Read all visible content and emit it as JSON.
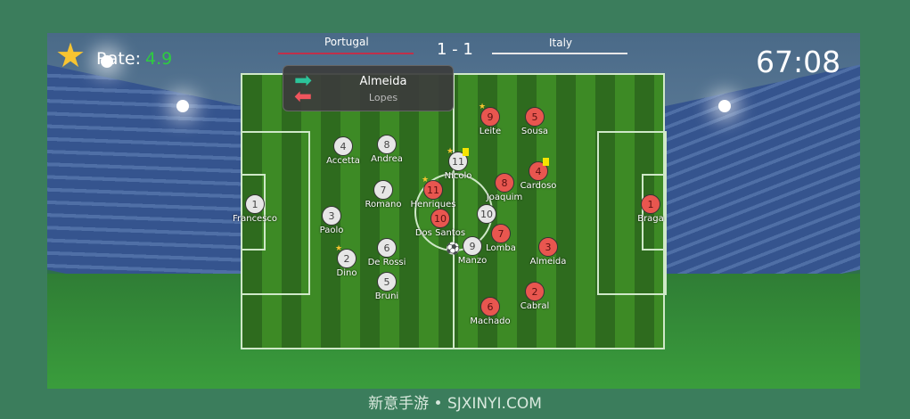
{
  "hud": {
    "rate_label": "Rate:",
    "rate_value": "4.9",
    "home_team": "Portugal",
    "away_team": "Italy",
    "score": "1 - 1",
    "clock": "67:08",
    "home_color": "#c0304a",
    "away_color": "#e8e8e8",
    "rate_color": "#2ecc40"
  },
  "substitution": {
    "player_in": "Almeida",
    "player_out": "Lopes",
    "in_icon": "arrow-right-icon",
    "out_icon": "arrow-left-icon"
  },
  "players_white": [
    {
      "num": "1",
      "name": "Francesco"
    },
    {
      "num": "3",
      "name": "Paolo"
    },
    {
      "num": "4",
      "name": "Accetta"
    },
    {
      "num": "8",
      "name": "Andrea"
    },
    {
      "num": "7",
      "name": "Romano"
    },
    {
      "num": "2",
      "name": "Dino",
      "star": true
    },
    {
      "num": "6",
      "name": "De Rossi"
    },
    {
      "num": "5",
      "name": "Bruni"
    },
    {
      "num": "11",
      "name": "Nicolo",
      "star": true,
      "card": "yellow"
    },
    {
      "num": "10",
      "name": ""
    },
    {
      "num": "9",
      "name": "Manzo"
    }
  ],
  "players_red": [
    {
      "num": "1",
      "name": "Braga"
    },
    {
      "num": "9",
      "name": "Leite",
      "star": true
    },
    {
      "num": "5",
      "name": "Sousa"
    },
    {
      "num": "4",
      "name": "Cardoso",
      "card": "yellow"
    },
    {
      "num": "8",
      "name": "Joaquim"
    },
    {
      "num": "11",
      "name": "Henriques",
      "star": true
    },
    {
      "num": "10",
      "name": "Dos Santos"
    },
    {
      "num": "7",
      "name": "Lomba"
    },
    {
      "num": "3",
      "name": "Almeida"
    },
    {
      "num": "2",
      "name": "Cabral"
    },
    {
      "num": "6",
      "name": "Machado"
    }
  ],
  "footer": "新意手游 • SJXINYI.COM"
}
